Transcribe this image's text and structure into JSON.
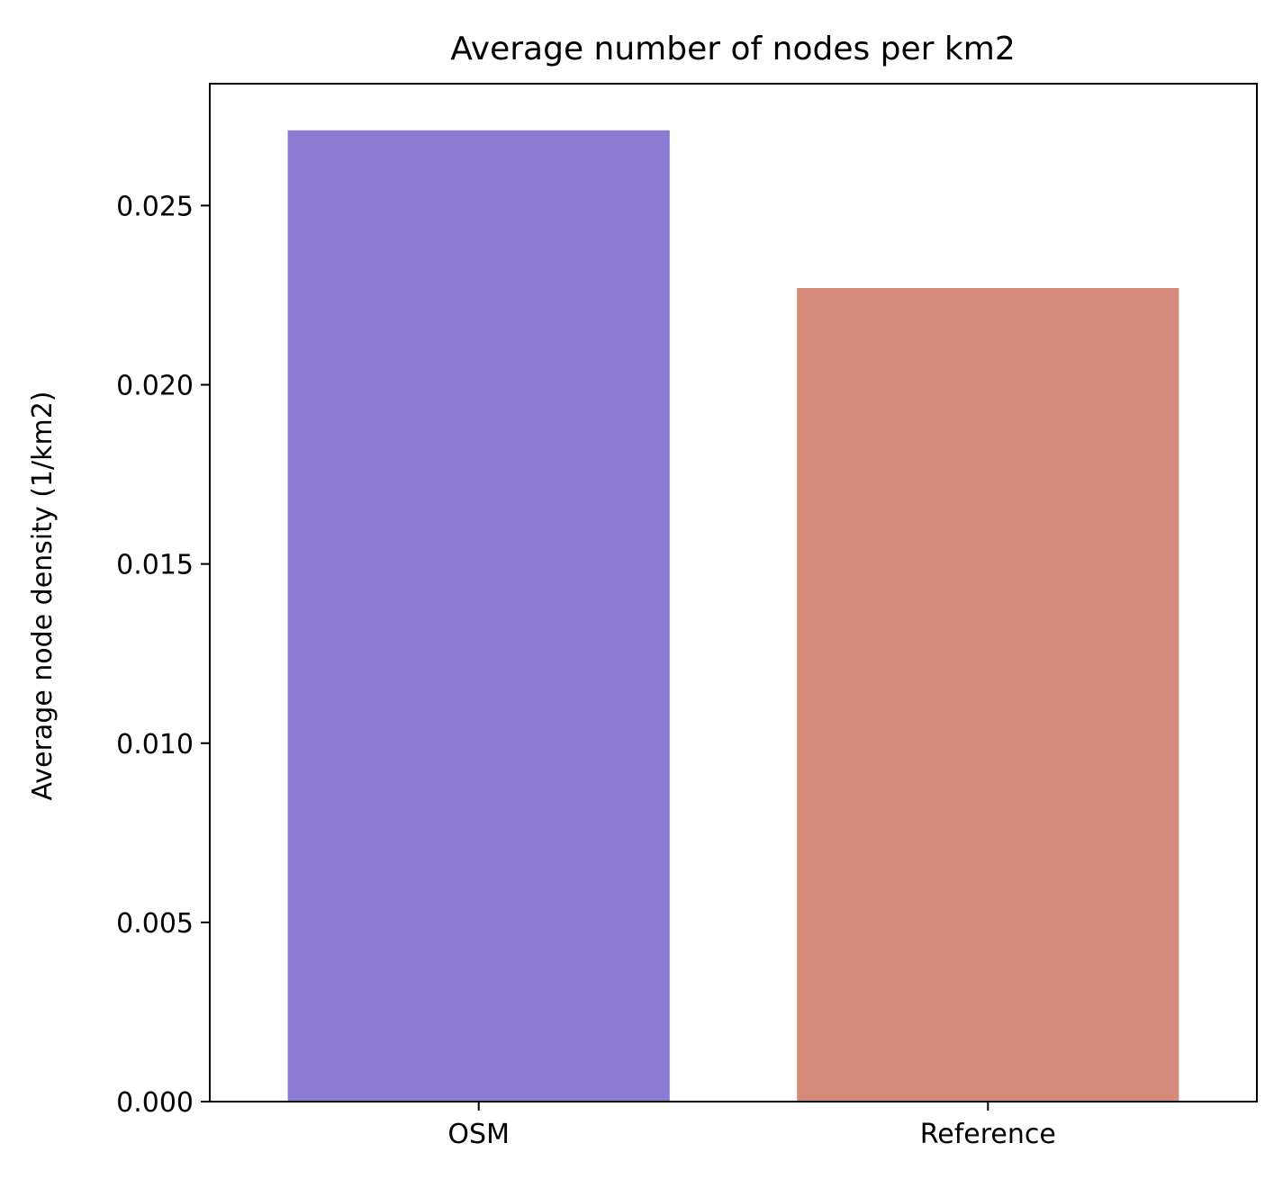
{
  "chart_data": {
    "type": "bar",
    "title": "Average number of nodes per km2",
    "xlabel": "",
    "ylabel": "Average node density (1/km2)",
    "categories": [
      "OSM",
      "Reference"
    ],
    "values": [
      0.0271,
      0.0227
    ],
    "colors": [
      "#8b7bd4",
      "#d68b7a"
    ],
    "ylim": [
      0,
      0.0284
    ],
    "yticks": [
      0.0,
      0.005,
      0.01,
      0.015,
      0.02,
      0.025
    ],
    "ytick_labels": [
      "0.000",
      "0.005",
      "0.010",
      "0.015",
      "0.020",
      "0.025"
    ],
    "grid": false,
    "legend": "none"
  }
}
